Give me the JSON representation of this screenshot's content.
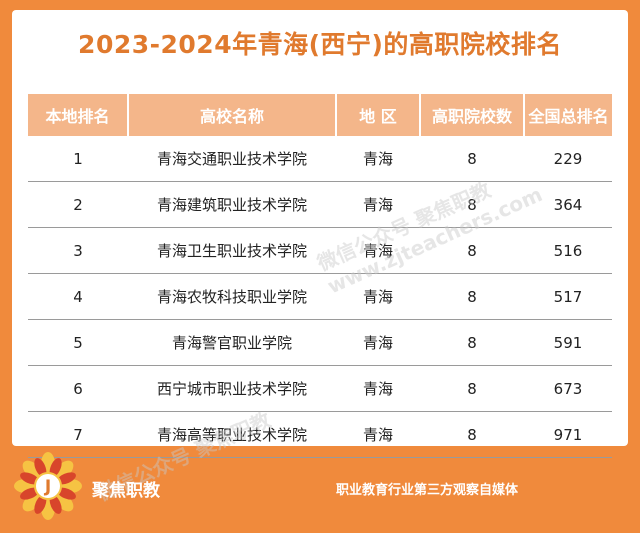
{
  "title": "2023-2024年青海(西宁)的高职院校排名",
  "table": {
    "headers": [
      "本地排名",
      "高校名称",
      "地 区",
      "高职院校数",
      "全国总排名"
    ],
    "rows": [
      {
        "local_rank": "1",
        "name": "青海交通职业技术学院",
        "region": "青海",
        "count": "8",
        "national_rank": "229"
      },
      {
        "local_rank": "2",
        "name": "青海建筑职业技术学院",
        "region": "青海",
        "count": "8",
        "national_rank": "364"
      },
      {
        "local_rank": "3",
        "name": "青海卫生职业技术学院",
        "region": "青海",
        "count": "8",
        "national_rank": "516"
      },
      {
        "local_rank": "4",
        "name": "青海农牧科技职业学院",
        "region": "青海",
        "count": "8",
        "national_rank": "517"
      },
      {
        "local_rank": "5",
        "name": "青海警官职业学院",
        "region": "青海",
        "count": "8",
        "national_rank": "591"
      },
      {
        "local_rank": "6",
        "name": "西宁城市职业技术学院",
        "region": "青海",
        "count": "8",
        "national_rank": "673"
      },
      {
        "local_rank": "7",
        "name": "青海高等职业技术学院",
        "region": "青海",
        "count": "8",
        "national_rank": "971"
      }
    ]
  },
  "footer": {
    "brand": "聚焦职教",
    "slogan": "职业教育行业第三方观察自媒体",
    "logo_letter": "J"
  },
  "watermarks": {
    "line1": "微信公众号 聚焦职教",
    "line2": "www.zjteachers.com"
  },
  "colors": {
    "background": "#f08a3c",
    "header_fill": "#f4b68a",
    "title_text": "#e07a2e"
  }
}
